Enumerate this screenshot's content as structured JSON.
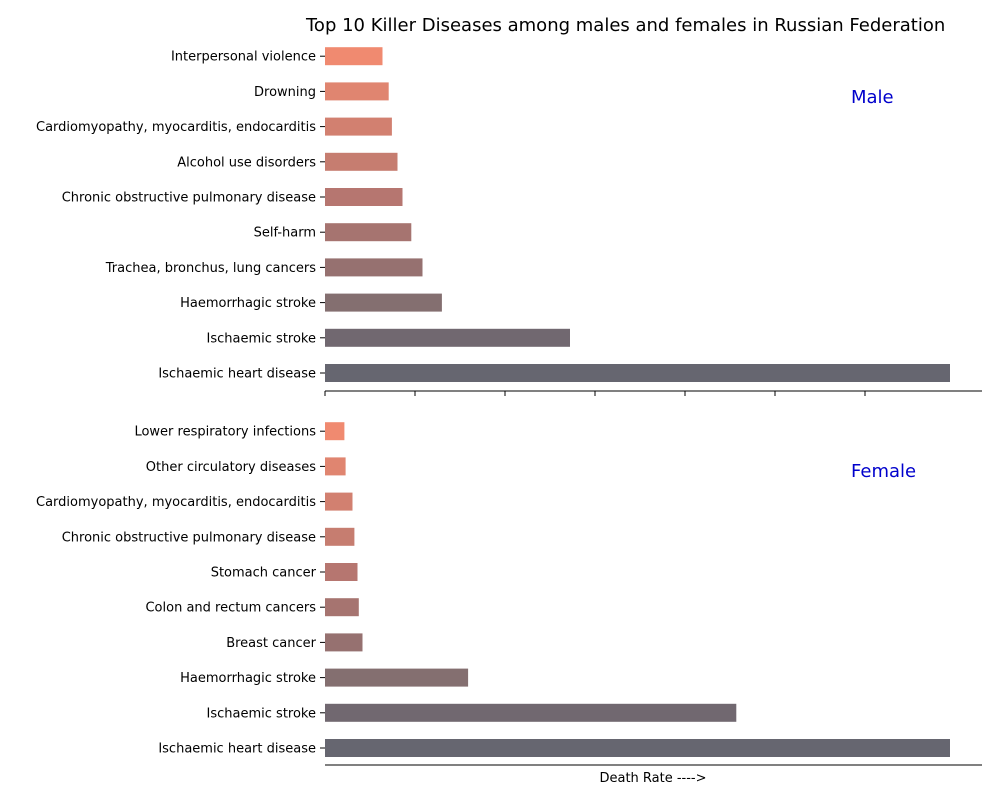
{
  "chart_data": {
    "type": "bar",
    "orientation": "horizontal",
    "title": "Top 10 Killer Diseases among males and females in Russian Federation",
    "xlabel": "Death Rate ---->",
    "ylabel": "",
    "x_tick_labels_shown": false,
    "grid": false,
    "colors": [
      "#666670",
      "#716870",
      "#846f70",
      "#967170",
      "#a67470",
      "#b67670",
      "#c67d70",
      "#d28070",
      "#e08570",
      "#f08a70"
    ],
    "panels": [
      {
        "label": "Male",
        "label_color": "#0000cc",
        "xlim": [
          0,
          1.05
        ],
        "categories": [
          "Ischaemic heart disease",
          "Ischaemic stroke",
          "Haemorrhagic stroke",
          "Trachea, bronchus, lung cancers",
          "Self-harm",
          "Chronic obstructive pulmonary disease",
          "Alcohol use disorders",
          "Cardiomyopathy, myocarditis, endocarditis",
          "Drowning",
          "Interpersonal violence"
        ],
        "values": [
          1.0,
          0.392,
          0.187,
          0.156,
          0.138,
          0.124,
          0.116,
          0.107,
          0.102,
          0.092
        ]
      },
      {
        "label": "Female",
        "label_color": "#0000cc",
        "xlim": [
          0,
          1.05
        ],
        "categories": [
          "Ischaemic heart disease",
          "Ischaemic stroke",
          "Haemorrhagic stroke",
          "Breast cancer",
          "Colon and rectum cancers",
          "Stomach cancer",
          "Chronic obstructive pulmonary disease",
          "Cardiomyopathy, myocarditis, endocarditis",
          "Other circulatory diseases",
          "Lower respiratory infections"
        ],
        "values": [
          1.0,
          0.658,
          0.229,
          0.06,
          0.054,
          0.052,
          0.047,
          0.044,
          0.033,
          0.031
        ]
      }
    ]
  }
}
